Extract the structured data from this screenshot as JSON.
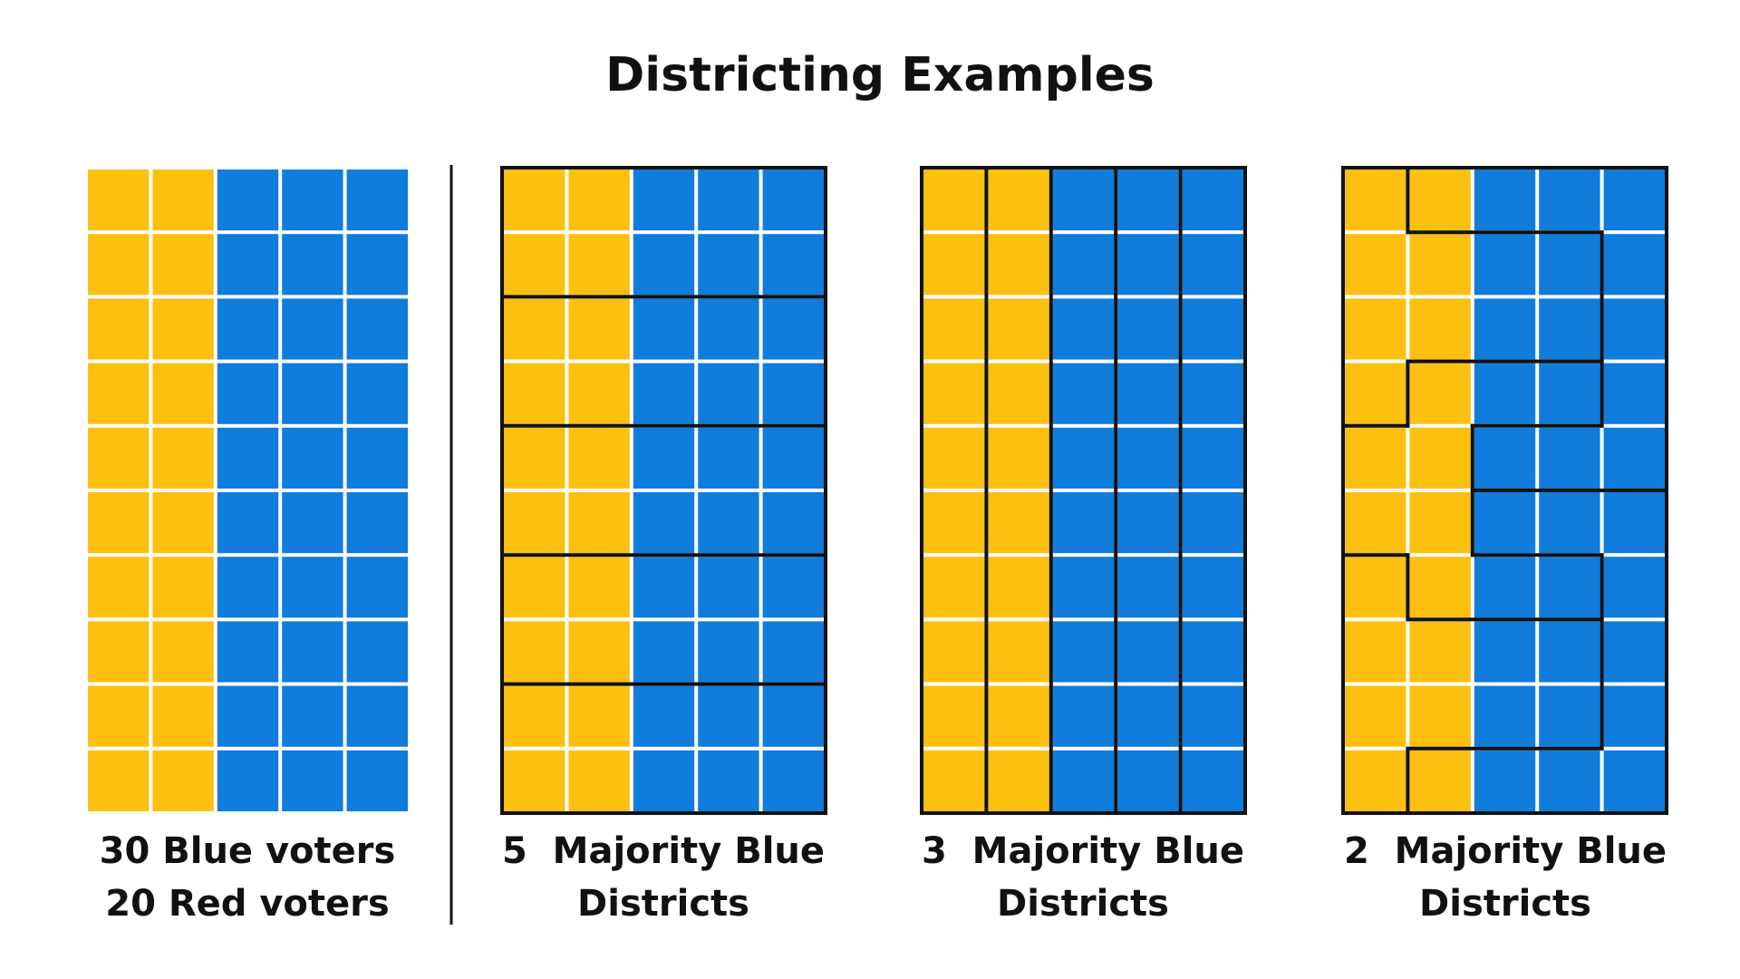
{
  "header": {
    "title": "Districting Examples"
  },
  "panels": [
    {
      "caption": [
        "30 Blue voters",
        "20 Red voters"
      ]
    },
    {
      "caption": [
        "5  Majority Blue",
        "Districts"
      ]
    },
    {
      "caption": [
        "3  Majority Blue",
        "Districts"
      ]
    },
    {
      "caption": [
        "2  Majority Blue",
        "Districts"
      ]
    }
  ]
}
